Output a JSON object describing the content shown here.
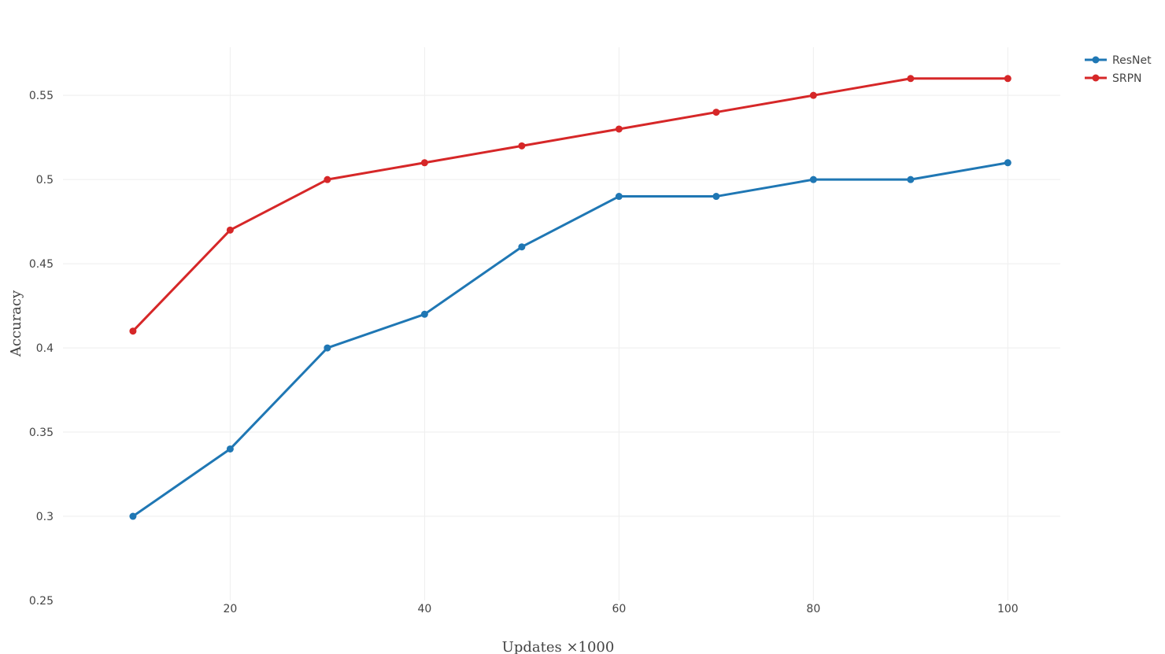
{
  "chart_data": {
    "type": "line",
    "title": "",
    "xlabel": "Updates ×1000",
    "ylabel": "Accuracy",
    "x": [
      10,
      20,
      30,
      40,
      50,
      60,
      70,
      80,
      90,
      100
    ],
    "xlim": [
      2.8,
      105.4
    ],
    "ylim": [
      0.25,
      0.5786
    ],
    "x_ticks": [
      20,
      40,
      60,
      80,
      100
    ],
    "x_tick_labels": [
      "20",
      "40",
      "60",
      "80",
      "100"
    ],
    "y_ticks": [
      0.25,
      0.3,
      0.35,
      0.4,
      0.45,
      0.5,
      0.55
    ],
    "y_tick_labels": [
      "0.25",
      "0.3",
      "0.35",
      "0.4",
      "0.45",
      "0.5",
      "0.55"
    ],
    "grid": true,
    "legend_position": "top-right",
    "series": [
      {
        "name": "ResNet",
        "color": "#1f77b4",
        "values": [
          0.3,
          0.34,
          0.4,
          0.42,
          0.46,
          0.49,
          0.49,
          0.5,
          0.5,
          0.51
        ]
      },
      {
        "name": "SRPN",
        "color": "#d62728",
        "values": [
          0.41,
          0.47,
          0.5,
          0.51,
          0.52,
          0.53,
          0.54,
          0.55,
          0.56,
          0.56
        ]
      }
    ]
  }
}
